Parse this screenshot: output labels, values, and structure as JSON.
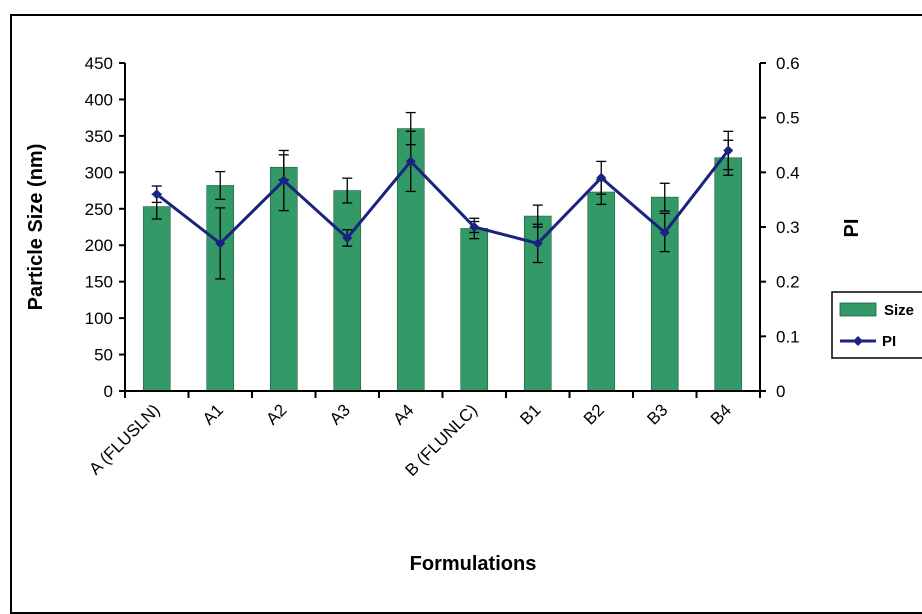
{
  "chart_data": {
    "type": "bar",
    "title": "",
    "xlabel": "Formulations",
    "ylabel": "Particle Size (nm)",
    "y2label": "PI",
    "categories": [
      "A (FLUSLN)",
      "A1",
      "A2",
      "A3",
      "A4",
      "B (FLUNLC)",
      "B1",
      "B2",
      "B3",
      "B4"
    ],
    "ylim": [
      0,
      450
    ],
    "y2lim": [
      0,
      0.6
    ],
    "yticks": [
      "0",
      "50",
      "100",
      "150",
      "200",
      "250",
      "300",
      "350",
      "400",
      "450"
    ],
    "y2ticks": [
      "0",
      "0.1",
      "0.2",
      "0.3",
      "0.4",
      "0.5",
      "0.6"
    ],
    "series": [
      {
        "name": "Size",
        "type": "bar",
        "axis": "left",
        "color": "#339966",
        "values": [
          253,
          282,
          307,
          275,
          360,
          223,
          240,
          273,
          266,
          320
        ],
        "errors": [
          17,
          19,
          17,
          17,
          22,
          14,
          15,
          17,
          19,
          24
        ]
      },
      {
        "name": "PI",
        "type": "line",
        "axis": "right",
        "color": "#1a237e",
        "values": [
          0.36,
          0.27,
          0.385,
          0.28,
          0.42,
          0.3,
          0.27,
          0.39,
          0.29,
          0.44
        ],
        "errors": [
          0.015,
          0.065,
          0.055,
          0.015,
          0.055,
          0.01,
          0.035,
          0.03,
          0.035,
          0.035
        ]
      }
    ],
    "legend": {
      "position": "right",
      "entries": [
        "Size",
        "PI"
      ]
    },
    "grid": false
  }
}
